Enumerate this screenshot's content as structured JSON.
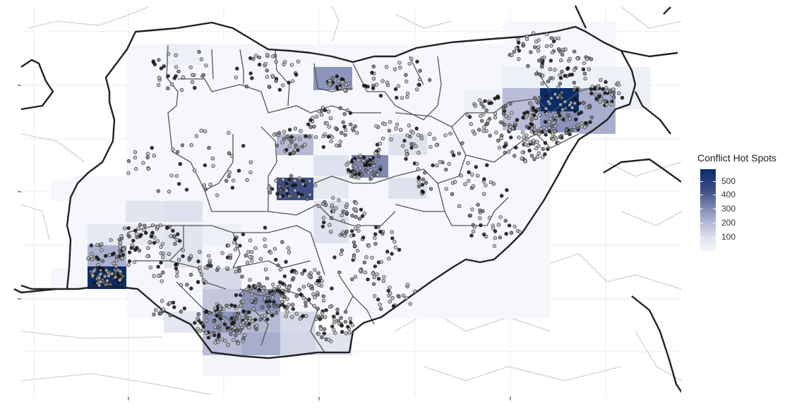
{
  "legend": {
    "title": "Conflict Hot Spots",
    "labels": [
      "500",
      "400",
      "300",
      "200",
      "100"
    ],
    "color_high": "#0a2d6b",
    "color_low": "#f4f6fc"
  },
  "colors": {
    "background": "#ffffff",
    "grid": "#ebebeb",
    "border_thick": "#222222",
    "border_state": "#555555",
    "border_region": "#d9d9d9",
    "point_dark": "#111111",
    "point_mid": "#777777",
    "point_light": "#bbbbbb"
  },
  "map": {
    "region": "Nigeria",
    "layers": [
      "hot-spot-density-grid",
      "conflict-event-points",
      "state-boundaries",
      "country-boundary"
    ]
  }
}
